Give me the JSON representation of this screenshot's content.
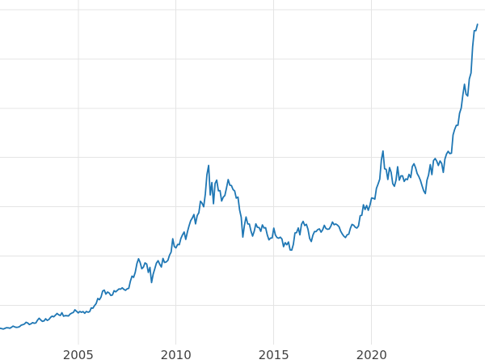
{
  "figure": {
    "background": "#ffffff"
  },
  "chart_data": {
    "type": "line",
    "title": "",
    "xlabel": "",
    "ylabel": "",
    "series_name": "price-history",
    "line_color": "#1f77b4",
    "grid_color": "#e4e4e4",
    "tick_color": "#404040",
    "legend": "none",
    "grid_on": true,
    "x_start": 2001.0,
    "x_step_years": 0.0833333,
    "xlim": [
      2001.0,
      2025.8
    ],
    "ylim": [
      100,
      3600
    ],
    "grid": {
      "x_values": [
        2005,
        2010,
        2015,
        2020
      ],
      "y_values": [
        500,
        1000,
        1500,
        2000,
        2500,
        3000,
        3500
      ]
    },
    "xticks": [
      {
        "value": 2005,
        "label": "2005"
      },
      {
        "value": 2010,
        "label": "2010"
      },
      {
        "value": 2015,
        "label": "2015"
      },
      {
        "value": 2020,
        "label": "2020"
      }
    ],
    "values": [
      266,
      262,
      258,
      264,
      272,
      270,
      266,
      275,
      287,
      280,
      275,
      277,
      282,
      297,
      302,
      309,
      327,
      319,
      304,
      311,
      323,
      317,
      320,
      348,
      368,
      350,
      336,
      340,
      362,
      346,
      355,
      376,
      388,
      383,
      398,
      416,
      402,
      396,
      424,
      388,
      394,
      393,
      391,
      410,
      420,
      426,
      453,
      438,
      422,
      436,
      428,
      435,
      418,
      437,
      429,
      434,
      473,
      470,
      495,
      517,
      568,
      556,
      583,
      644,
      653,
      613,
      634,
      623,
      599,
      604,
      647,
      636,
      651,
      665,
      663,
      677,
      661,
      651,
      666,
      672,
      743,
      795,
      783,
      834,
      923,
      972,
      933,
      871,
      886,
      930,
      918,
      833,
      884,
      730,
      816,
      870,
      927,
      952,
      916,
      888,
      975,
      934,
      939,
      955,
      1008,
      1040,
      1175,
      1096,
      1083,
      1118,
      1115,
      1179,
      1215,
      1244,
      1169,
      1246,
      1307,
      1359,
      1386,
      1421,
      1327,
      1411,
      1439,
      1556,
      1536,
      1500,
      1628,
      1826,
      1920,
      1620,
      1746,
      1531,
      1737,
      1770,
      1662,
      1664,
      1558,
      1598,
      1615,
      1691,
      1776,
      1719,
      1715,
      1675,
      1660,
      1588,
      1598,
      1469,
      1394,
      1192,
      1313,
      1396,
      1326,
      1324,
      1253,
      1202,
      1251,
      1326,
      1291,
      1288,
      1250,
      1315,
      1285,
      1287,
      1216,
      1164,
      1182,
      1184,
      1283,
      1213,
      1187,
      1180,
      1191,
      1172,
      1095,
      1135,
      1114,
      1142,
      1061,
      1060,
      1118,
      1234,
      1237,
      1285,
      1215,
      1322,
      1351,
      1309,
      1322,
      1272,
      1178,
      1147,
      1212,
      1248,
      1249,
      1268,
      1275,
      1242,
      1267,
      1311,
      1280,
      1271,
      1275,
      1303,
      1345,
      1318,
      1325,
      1315,
      1298,
      1253,
      1224,
      1201,
      1187,
      1215,
      1222,
      1282,
      1321,
      1313,
      1292,
      1283,
      1305,
      1409,
      1414,
      1520,
      1472,
      1513,
      1464,
      1517,
      1589,
      1586,
      1577,
      1687,
      1730,
      1781,
      1976,
      2067,
      1886,
      1879,
      1777,
      1898,
      1848,
      1734,
      1708,
      1769,
      1907,
      1770,
      1814,
      1814,
      1757,
      1783,
      1775,
      1829,
      1797,
      1909,
      1937,
      1897,
      1837,
      1807,
      1766,
      1711,
      1661,
      1634,
      1769,
      1824,
      1928,
      1827,
      1969,
      1990,
      1963,
      1919,
      1965,
      1940,
      1849,
      1984,
      2036,
      2063,
      2040,
      2044,
      2230,
      2286,
      2327,
      2327,
      2448,
      2503,
      2635,
      2744,
      2643,
      2625,
      2798,
      2858,
      3124,
      3289,
      3289,
      3353
    ]
  }
}
